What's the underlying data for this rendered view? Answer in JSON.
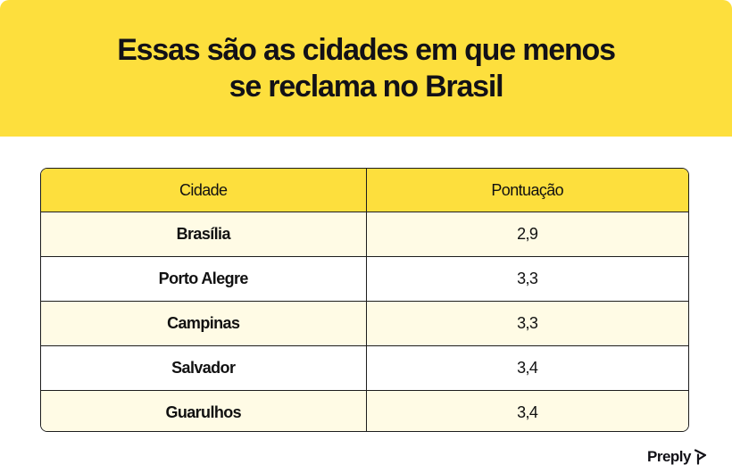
{
  "header": {
    "title_line1": "Essas são as cidades em que menos",
    "title_line2": "se reclama no Brasil",
    "background_color": "#fddf3d"
  },
  "table": {
    "columns": [
      "Cidade",
      "Pontuação"
    ],
    "rows": [
      {
        "city": "Brasília",
        "score": "2,9"
      },
      {
        "city": "Porto Alegre",
        "score": "3,3"
      },
      {
        "city": "Campinas",
        "score": "3,3"
      },
      {
        "city": "Salvador",
        "score": "3,4"
      },
      {
        "city": "Guarulhos",
        "score": "3,4"
      }
    ]
  },
  "brand": {
    "name": "Preply",
    "icon": "preply-logo-icon"
  }
}
